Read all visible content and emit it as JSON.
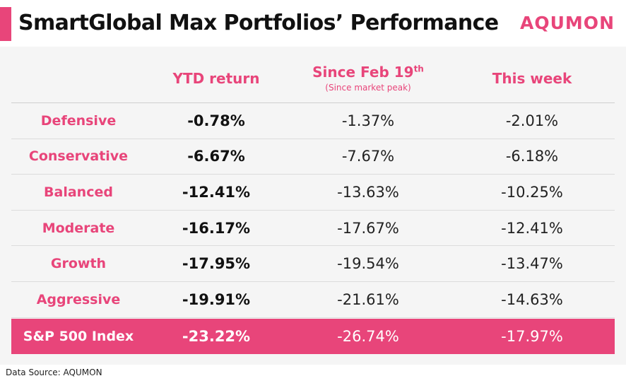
{
  "header": {
    "title": "SmartGlobal Max Portfolios’ Performance",
    "brand": "AQUMON"
  },
  "table": {
    "columns": {
      "ytd": "YTD return",
      "since_prefix": "Since Feb 19",
      "since_sup": "th",
      "since_sub": "(Since market peak)",
      "week": "This week"
    },
    "rows": [
      {
        "label": "Defensive",
        "ytd": "-0.78%",
        "since": "-1.37%",
        "week": "-2.01%"
      },
      {
        "label": "Conservative",
        "ytd": "-6.67%",
        "since": "-7.67%",
        "week": "-6.18%"
      },
      {
        "label": "Balanced",
        "ytd": "-12.41%",
        "since": "-13.63%",
        "week": "-10.25%"
      },
      {
        "label": "Moderate",
        "ytd": "-16.17%",
        "since": "-17.67%",
        "week": "-12.41%"
      },
      {
        "label": "Growth",
        "ytd": "-17.95%",
        "since": "-19.54%",
        "week": "-13.47%"
      },
      {
        "label": "Aggressive",
        "ytd": "-19.91%",
        "since": "-21.61%",
        "week": "-14.63%"
      }
    ],
    "benchmark": {
      "label": "S&P 500 Index",
      "ytd": "-23.22%",
      "since": "-26.74%",
      "week": "-17.97%"
    }
  },
  "footer": {
    "source": "Data Source: AQUMON"
  },
  "colors": {
    "accent": "#e8457a",
    "panel": "#f5f5f5"
  }
}
